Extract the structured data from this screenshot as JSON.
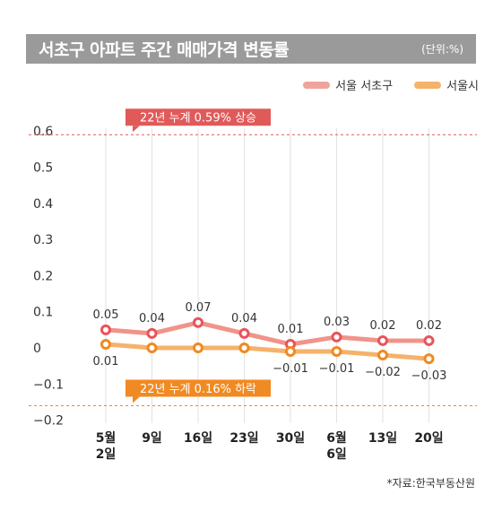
{
  "header": {
    "title": "서초구 아파트 주간 매매가격 변동률",
    "unit": "(단위:%)"
  },
  "legend": [
    {
      "label": "서울 서초구",
      "color": "#f0948a"
    },
    {
      "label": "서울시",
      "color": "#f5a95a"
    }
  ],
  "source": "*자료:한국부동산원",
  "chart_data": {
    "type": "line",
    "title": "서초구 아파트 주간 매매가격 변동률",
    "unit": "(단위:%)",
    "categories": [
      "5월\n2일",
      "9일",
      "16일",
      "23일",
      "30일",
      "6월\n6일",
      "13일",
      "20일"
    ],
    "ylim": [
      -0.2,
      0.6
    ],
    "yticks": [
      0.6,
      0.5,
      0.4,
      0.3,
      0.2,
      0.1,
      0,
      -0.1,
      -0.2
    ],
    "ytick_labels": [
      "0.6",
      "0.5",
      "0.4",
      "0.3",
      "0.2",
      "0.1",
      "0",
      "−0.1",
      "−0.2"
    ],
    "grid": "vertical",
    "legend_position": "top-right",
    "series": [
      {
        "name": "서울 서초구",
        "color": "#f0948a",
        "marker_ring": "#e9545a",
        "values": [
          0.05,
          0.04,
          0.07,
          0.04,
          0.01,
          0.03,
          0.02,
          0.02
        ],
        "labels": [
          "0.05",
          "0.04",
          "0.07",
          "0.04",
          "0.01",
          "0.03",
          "0.02",
          "0.02"
        ]
      },
      {
        "name": "서울시",
        "color": "#f5b26a",
        "marker_ring": "#f08a22",
        "values": [
          0.01,
          0,
          0,
          0,
          -0.01,
          -0.01,
          -0.02,
          -0.03
        ],
        "labels": [
          "0.01",
          "",
          "",
          "",
          "−0.01",
          "−0.01",
          "−0.02",
          "−0.03"
        ]
      }
    ],
    "reference_lines": [
      {
        "value": 0.59,
        "label": "22년 누계 0.59% 상승",
        "color": "#e05a5a"
      },
      {
        "value": -0.16,
        "label": "22년 누계 0.16% 하락",
        "color": "#f08a22"
      }
    ]
  }
}
